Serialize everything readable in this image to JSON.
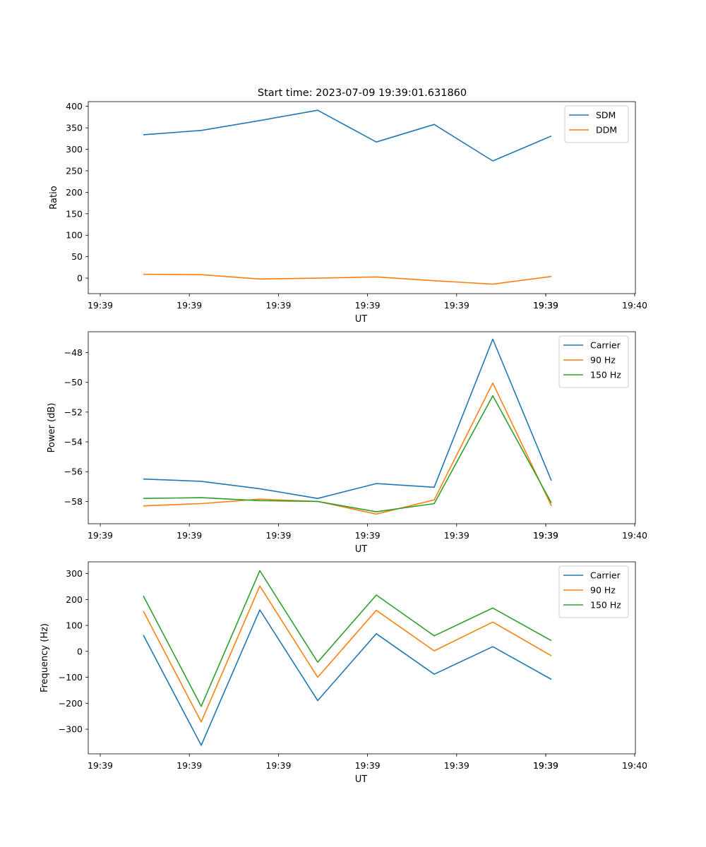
{
  "figure": {
    "title": "Start time: 2023-07-09 19:39:01.631860"
  },
  "chart_data": [
    {
      "type": "line",
      "xlabel": "UT",
      "ylabel": "Ratio",
      "x_tick_labels": [
        "19:39",
        "19:39",
        "19:39",
        "19:39",
        "19:39",
        "19:39",
        "19:39",
        "19:40"
      ],
      "y_ticks": [
        0,
        50,
        100,
        150,
        200,
        250,
        300,
        350,
        400
      ],
      "ylim": [
        -36,
        411
      ],
      "legend_position": "upper-right",
      "series": [
        {
          "name": "SDM",
          "color": "#1f77b4",
          "values": [
            334,
            344,
            367,
            391,
            317,
            358,
            273,
            331
          ]
        },
        {
          "name": "DDM",
          "color": "#ff7f0e",
          "values": [
            9,
            8,
            -2,
            0,
            3,
            -6,
            -14,
            4
          ]
        }
      ]
    },
    {
      "type": "line",
      "xlabel": "UT",
      "ylabel": "Power (dB)",
      "x_tick_labels": [
        "19:39",
        "19:39",
        "19:39",
        "19:39",
        "19:39",
        "19:39",
        "19:39",
        "19:40"
      ],
      "y_ticks": [
        -48,
        -50,
        -52,
        -54,
        -56,
        -58
      ],
      "ylim": [
        -59.5,
        -46.6
      ],
      "legend_position": "upper-right",
      "series": [
        {
          "name": "Carrier",
          "color": "#1f77b4",
          "values": [
            -56.5,
            -56.65,
            -57.15,
            -57.8,
            -56.8,
            -57.05,
            -47.1,
            -56.6
          ]
        },
        {
          "name": "90 Hz",
          "color": "#ff7f0e",
          "values": [
            -58.3,
            -58.15,
            -57.85,
            -58.0,
            -58.85,
            -57.9,
            -50.05,
            -58.3
          ]
        },
        {
          "name": "150 Hz",
          "color": "#2ca02c",
          "values": [
            -57.8,
            -57.75,
            -57.95,
            -58.0,
            -58.7,
            -58.15,
            -50.9,
            -58.1
          ]
        }
      ]
    },
    {
      "type": "line",
      "xlabel": "UT",
      "ylabel": "Frequency (Hz)",
      "x_tick_labels": [
        "19:39",
        "19:39",
        "19:39",
        "19:39",
        "19:39",
        "19:39",
        "19:39",
        "19:40"
      ],
      "y_ticks": [
        300,
        200,
        100,
        0,
        -100,
        -200,
        -300
      ],
      "ylim": [
        -395,
        345
      ],
      "legend_position": "upper-right",
      "series": [
        {
          "name": "Carrier",
          "color": "#1f77b4",
          "values": [
            63,
            -362,
            160,
            -190,
            68,
            -88,
            18,
            -108
          ]
        },
        {
          "name": "90 Hz",
          "color": "#ff7f0e",
          "values": [
            155,
            -272,
            252,
            -100,
            158,
            2,
            113,
            -17
          ]
        },
        {
          "name": "150 Hz",
          "color": "#2ca02c",
          "values": [
            214,
            -212,
            311,
            -42,
            217,
            60,
            167,
            41
          ]
        }
      ]
    }
  ]
}
